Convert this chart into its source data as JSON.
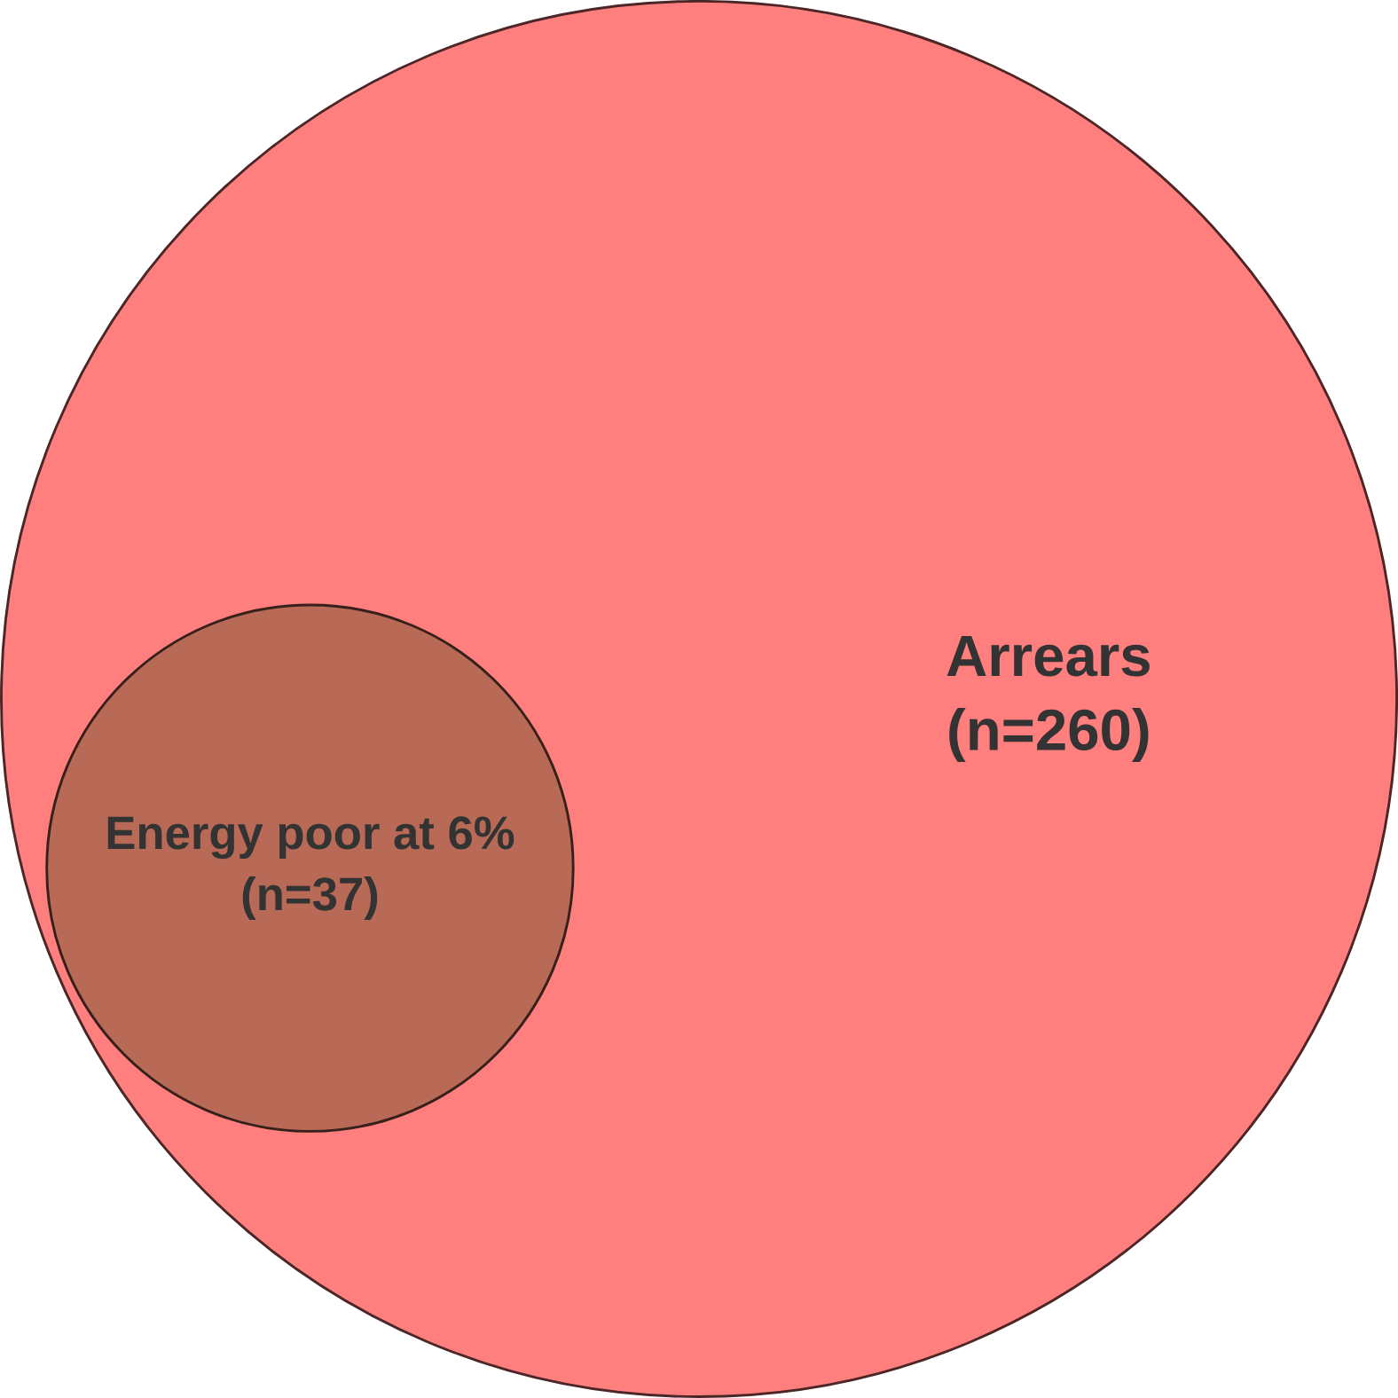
{
  "chart_data": {
    "type": "other",
    "categories": [
      "Arrears",
      "Energy poor at 6%"
    ],
    "values": [
      260,
      37
    ],
    "value_labels": [
      "(n=260)",
      "(n=37)"
    ],
    "colors": [
      "#ff7f7f",
      "#b86a56"
    ]
  }
}
